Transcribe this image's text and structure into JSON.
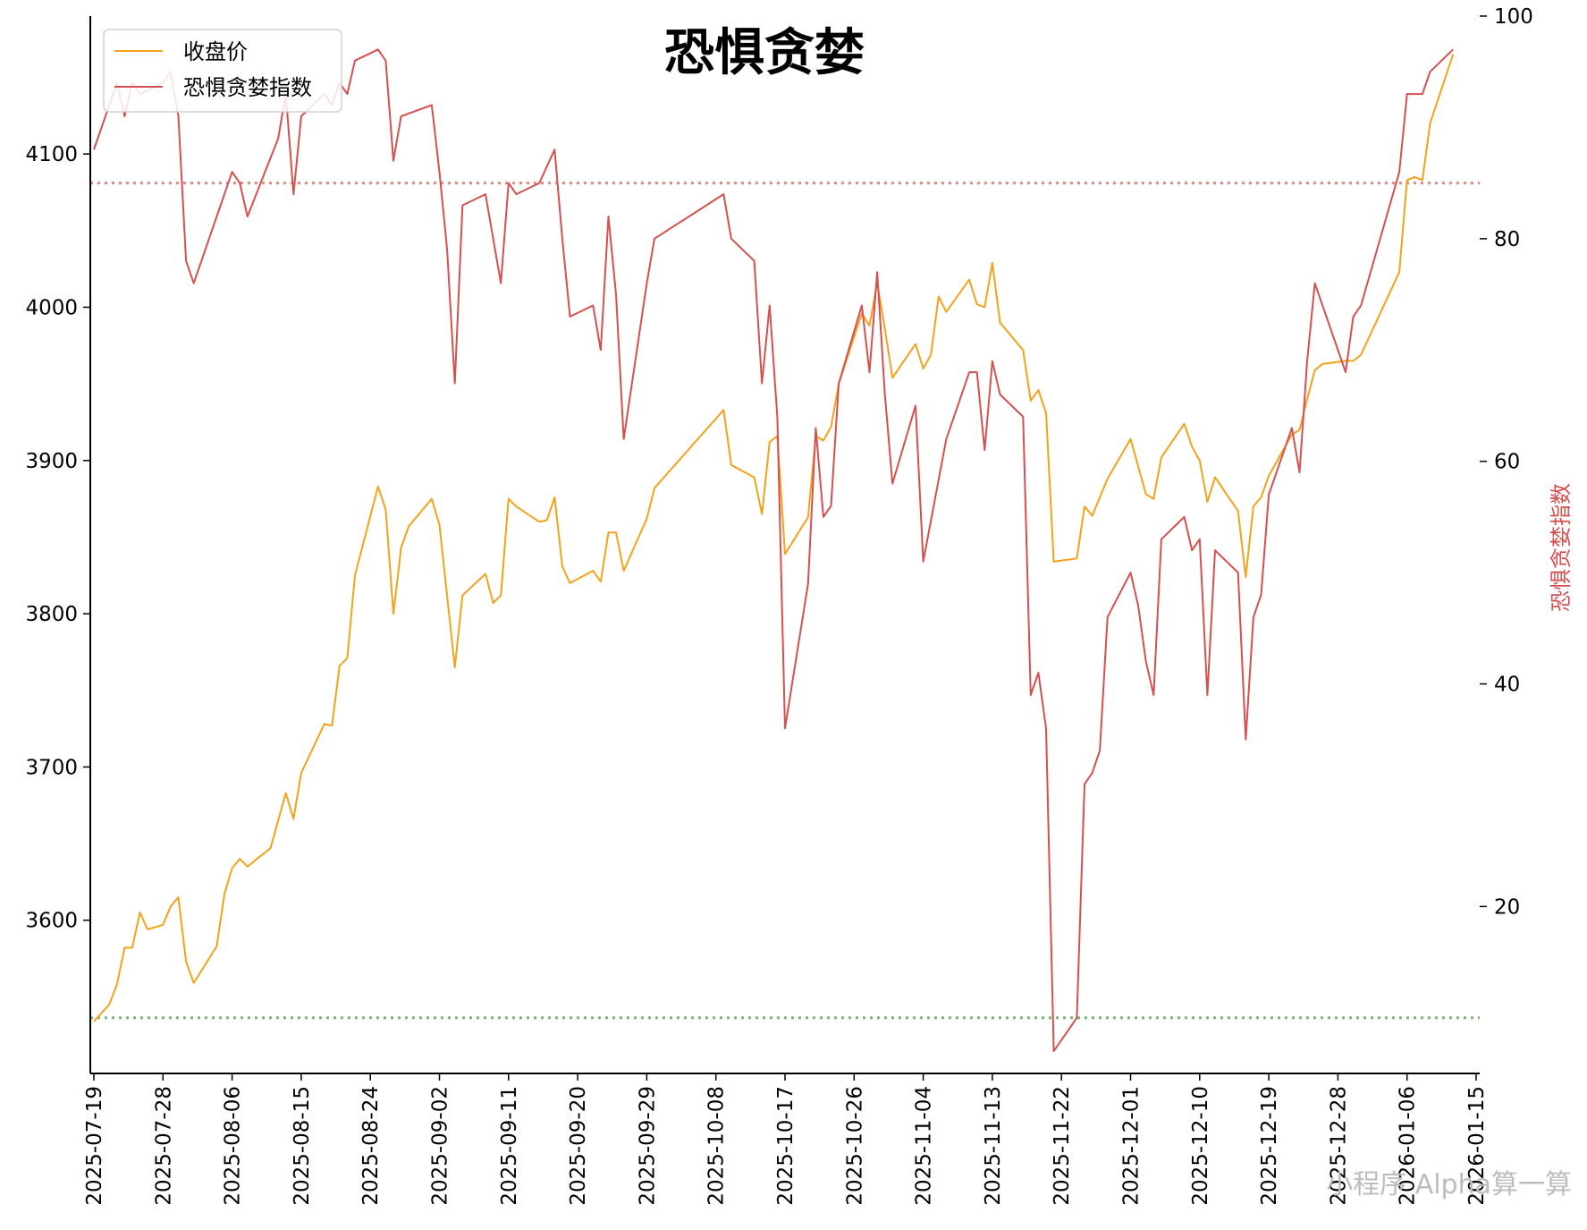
{
  "chart_data": {
    "type": "line",
    "title": "恐惧贪婪",
    "ylabel_right": "恐惧贪婪指数",
    "legend": [
      "收盘价",
      "恐惧贪婪指数"
    ],
    "legend_position": "top-left",
    "watermark": "小程序 Alpha算一算",
    "colors": {
      "close": "#f2a31b",
      "fgi": "#d5504f",
      "upper_ref": "#e98583",
      "lower_ref": "#76b86e"
    },
    "ylim_left": [
      3500,
      4190
    ],
    "ylim_right": [
      5,
      100
    ],
    "x_range": [
      "2025-07-19",
      "2026-01-15"
    ],
    "yticks_left": [
      "3600",
      "3700",
      "3800",
      "3900",
      "4000",
      "4100"
    ],
    "yticks_right": [
      "20",
      "40",
      "60",
      "80",
      "100"
    ],
    "xticks": [
      "2025-07-19",
      "2025-07-28",
      "2025-08-06",
      "2025-08-15",
      "2025-08-24",
      "2025-09-02",
      "2025-09-11",
      "2025-09-20",
      "2025-09-29",
      "2025-10-08",
      "2025-10-17",
      "2025-10-26",
      "2025-11-04",
      "2025-11-13",
      "2025-11-22",
      "2025-12-01",
      "2025-12-10",
      "2025-12-19",
      "2025-12-28",
      "2026-01-06",
      "2026-01-15"
    ],
    "reference_lines_right": [
      85,
      10
    ],
    "series": [
      {
        "name": "收盘价",
        "axis": "left",
        "points": [
          [
            "2025-07-19",
            3534
          ],
          [
            "2025-07-21",
            3545
          ],
          [
            "2025-07-22",
            3558
          ],
          [
            "2025-07-23",
            3582
          ],
          [
            "2025-07-24",
            3582
          ],
          [
            "2025-07-25",
            3605
          ],
          [
            "2025-07-26",
            3594
          ],
          [
            "2025-07-28",
            3597
          ],
          [
            "2025-07-29",
            3609
          ],
          [
            "2025-07-30",
            3615
          ],
          [
            "2025-07-31",
            3573
          ],
          [
            "2025-08-01",
            3559
          ],
          [
            "2025-08-04",
            3583
          ],
          [
            "2025-08-05",
            3617
          ],
          [
            "2025-08-06",
            3634
          ],
          [
            "2025-08-07",
            3640
          ],
          [
            "2025-08-08",
            3635
          ],
          [
            "2025-08-11",
            3647
          ],
          [
            "2025-08-13",
            3683
          ],
          [
            "2025-08-14",
            3666
          ],
          [
            "2025-08-15",
            3696
          ],
          [
            "2025-08-18",
            3728
          ],
          [
            "2025-08-19",
            3727
          ],
          [
            "2025-08-20",
            3766
          ],
          [
            "2025-08-21",
            3771
          ],
          [
            "2025-08-22",
            3825
          ],
          [
            "2025-08-25",
            3883
          ],
          [
            "2025-08-26",
            3868
          ],
          [
            "2025-08-27",
            3800
          ],
          [
            "2025-08-28",
            3843
          ],
          [
            "2025-08-29",
            3857
          ],
          [
            "2025-09-01",
            3875
          ],
          [
            "2025-09-02",
            3858
          ],
          [
            "2025-09-04",
            3765
          ],
          [
            "2025-09-05",
            3812
          ],
          [
            "2025-09-08",
            3826
          ],
          [
            "2025-09-09",
            3807
          ],
          [
            "2025-09-10",
            3812
          ],
          [
            "2025-09-11",
            3875
          ],
          [
            "2025-09-12",
            3870
          ],
          [
            "2025-09-15",
            3860
          ],
          [
            "2025-09-16",
            3861
          ],
          [
            "2025-09-17",
            3876
          ],
          [
            "2025-09-18",
            3831
          ],
          [
            "2025-09-19",
            3820
          ],
          [
            "2025-09-22",
            3828
          ],
          [
            "2025-09-23",
            3821
          ],
          [
            "2025-09-24",
            3853
          ],
          [
            "2025-09-25",
            3853
          ],
          [
            "2025-09-26",
            3828
          ],
          [
            "2025-09-29",
            3862
          ],
          [
            "2025-09-30",
            3882
          ],
          [
            "2025-10-09",
            3933
          ],
          [
            "2025-10-10",
            3897
          ],
          [
            "2025-10-13",
            3889
          ],
          [
            "2025-10-14",
            3865
          ],
          [
            "2025-10-15",
            3912
          ],
          [
            "2025-10-16",
            3916
          ],
          [
            "2025-10-17",
            3839
          ],
          [
            "2025-10-20",
            3863
          ],
          [
            "2025-10-21",
            3916
          ],
          [
            "2025-10-22",
            3913
          ],
          [
            "2025-10-23",
            3922
          ],
          [
            "2025-10-24",
            3950
          ],
          [
            "2025-10-27",
            3996
          ],
          [
            "2025-10-28",
            3988
          ],
          [
            "2025-10-29",
            4016
          ],
          [
            "2025-10-30",
            3986
          ],
          [
            "2025-10-31",
            3954
          ],
          [
            "2025-11-03",
            3976
          ],
          [
            "2025-11-04",
            3960
          ],
          [
            "2025-11-05",
            3969
          ],
          [
            "2025-11-06",
            4007
          ],
          [
            "2025-11-07",
            3997
          ],
          [
            "2025-11-10",
            4018
          ],
          [
            "2025-11-11",
            4002
          ],
          [
            "2025-11-12",
            4000
          ],
          [
            "2025-11-13",
            4029
          ],
          [
            "2025-11-14",
            3990
          ],
          [
            "2025-11-17",
            3972
          ],
          [
            "2025-11-18",
            3939
          ],
          [
            "2025-11-19",
            3946
          ],
          [
            "2025-11-20",
            3931
          ],
          [
            "2025-11-21",
            3834
          ],
          [
            "2025-11-24",
            3836
          ],
          [
            "2025-11-25",
            3870
          ],
          [
            "2025-11-26",
            3864
          ],
          [
            "2025-11-28",
            3888
          ],
          [
            "2025-12-01",
            3914
          ],
          [
            "2025-12-03",
            3878
          ],
          [
            "2025-12-04",
            3875
          ],
          [
            "2025-12-05",
            3902
          ],
          [
            "2025-12-08",
            3924
          ],
          [
            "2025-12-09",
            3909
          ],
          [
            "2025-12-10",
            3900
          ],
          [
            "2025-12-11",
            3873
          ],
          [
            "2025-12-12",
            3889
          ],
          [
            "2025-12-15",
            3867
          ],
          [
            "2025-12-16",
            3824
          ],
          [
            "2025-12-17",
            3870
          ],
          [
            "2025-12-18",
            3876
          ],
          [
            "2025-12-19",
            3890
          ],
          [
            "2025-12-22",
            3917
          ],
          [
            "2025-12-23",
            3920
          ],
          [
            "2025-12-24",
            3940
          ],
          [
            "2025-12-25",
            3959
          ],
          [
            "2025-12-26",
            3963
          ],
          [
            "2025-12-29",
            3965
          ],
          [
            "2025-12-30",
            3965
          ],
          [
            "2025-12-31",
            3969
          ],
          [
            "2026-01-05",
            4023
          ],
          [
            "2026-01-06",
            4083
          ],
          [
            "2026-01-07",
            4085
          ],
          [
            "2026-01-08",
            4083
          ],
          [
            "2026-01-09",
            4120
          ],
          [
            "2026-01-12",
            4165
          ]
        ]
      },
      {
        "name": "恐惧贪婪指数",
        "axis": "right",
        "points": [
          [
            "2025-07-19",
            88
          ],
          [
            "2025-07-22",
            94
          ],
          [
            "2025-07-23",
            91
          ],
          [
            "2025-07-24",
            94
          ],
          [
            "2025-07-25",
            93
          ],
          [
            "2025-07-28",
            94
          ],
          [
            "2025-07-29",
            95
          ],
          [
            "2025-07-30",
            91
          ],
          [
            "2025-07-31",
            78
          ],
          [
            "2025-08-01",
            76
          ],
          [
            "2025-08-04",
            82
          ],
          [
            "2025-08-06",
            86
          ],
          [
            "2025-08-07",
            85
          ],
          [
            "2025-08-08",
            82
          ],
          [
            "2025-08-12",
            89
          ],
          [
            "2025-08-13",
            93
          ],
          [
            "2025-08-14",
            84
          ],
          [
            "2025-08-15",
            91
          ],
          [
            "2025-08-18",
            93
          ],
          [
            "2025-08-19",
            92
          ],
          [
            "2025-08-20",
            94
          ],
          [
            "2025-08-21",
            93
          ],
          [
            "2025-08-22",
            96
          ],
          [
            "2025-08-25",
            97
          ],
          [
            "2025-08-26",
            96
          ],
          [
            "2025-08-27",
            87
          ],
          [
            "2025-08-28",
            91
          ],
          [
            "2025-09-01",
            92
          ],
          [
            "2025-09-02",
            86
          ],
          [
            "2025-09-03",
            79
          ],
          [
            "2025-09-04",
            67
          ],
          [
            "2025-09-05",
            83
          ],
          [
            "2025-09-08",
            84
          ],
          [
            "2025-09-09",
            80
          ],
          [
            "2025-09-10",
            76
          ],
          [
            "2025-09-11",
            85
          ],
          [
            "2025-09-12",
            84
          ],
          [
            "2025-09-15",
            85
          ],
          [
            "2025-09-17",
            88
          ],
          [
            "2025-09-18",
            80
          ],
          [
            "2025-09-19",
            73
          ],
          [
            "2025-09-22",
            74
          ],
          [
            "2025-09-23",
            70
          ],
          [
            "2025-09-24",
            82
          ],
          [
            "2025-09-25",
            75
          ],
          [
            "2025-09-26",
            62
          ],
          [
            "2025-09-29",
            76
          ],
          [
            "2025-09-30",
            80
          ],
          [
            "2025-10-09",
            84
          ],
          [
            "2025-10-10",
            80
          ],
          [
            "2025-10-13",
            78
          ],
          [
            "2025-10-14",
            67
          ],
          [
            "2025-10-15",
            74
          ],
          [
            "2025-10-16",
            64
          ],
          [
            "2025-10-17",
            36
          ],
          [
            "2025-10-20",
            49
          ],
          [
            "2025-10-21",
            63
          ],
          [
            "2025-10-22",
            55
          ],
          [
            "2025-10-23",
            56
          ],
          [
            "2025-10-24",
            67
          ],
          [
            "2025-10-27",
            74
          ],
          [
            "2025-10-28",
            68
          ],
          [
            "2025-10-29",
            77
          ],
          [
            "2025-10-30",
            66
          ],
          [
            "2025-10-31",
            58
          ],
          [
            "2025-11-03",
            65
          ],
          [
            "2025-11-04",
            51
          ],
          [
            "2025-11-07",
            62
          ],
          [
            "2025-11-10",
            68
          ],
          [
            "2025-11-11",
            68
          ],
          [
            "2025-11-12",
            61
          ],
          [
            "2025-11-13",
            69
          ],
          [
            "2025-11-14",
            66
          ],
          [
            "2025-11-17",
            64
          ],
          [
            "2025-11-18",
            39
          ],
          [
            "2025-11-19",
            41
          ],
          [
            "2025-11-20",
            36
          ],
          [
            "2025-11-21",
            7
          ],
          [
            "2025-11-24",
            10
          ],
          [
            "2025-11-25",
            31
          ],
          [
            "2025-11-26",
            32
          ],
          [
            "2025-11-27",
            34
          ],
          [
            "2025-11-28",
            46
          ],
          [
            "2025-12-01",
            50
          ],
          [
            "2025-12-02",
            47
          ],
          [
            "2025-12-03",
            42
          ],
          [
            "2025-12-04",
            39
          ],
          [
            "2025-12-05",
            53
          ],
          [
            "2025-12-08",
            55
          ],
          [
            "2025-12-09",
            52
          ],
          [
            "2025-12-10",
            53
          ],
          [
            "2025-12-11",
            39
          ],
          [
            "2025-12-12",
            52
          ],
          [
            "2025-12-15",
            50
          ],
          [
            "2025-12-16",
            35
          ],
          [
            "2025-12-17",
            46
          ],
          [
            "2025-12-18",
            48
          ],
          [
            "2025-12-19",
            57
          ],
          [
            "2025-12-22",
            63
          ],
          [
            "2025-12-23",
            59
          ],
          [
            "2025-12-24",
            69
          ],
          [
            "2025-12-25",
            76
          ],
          [
            "2025-12-29",
            68
          ],
          [
            "2025-12-30",
            73
          ],
          [
            "2025-12-31",
            74
          ],
          [
            "2026-01-05",
            86
          ],
          [
            "2026-01-06",
            93
          ],
          [
            "2026-01-07",
            93
          ],
          [
            "2026-01-08",
            93
          ],
          [
            "2026-01-09",
            95
          ],
          [
            "2026-01-12",
            97
          ]
        ]
      }
    ]
  }
}
